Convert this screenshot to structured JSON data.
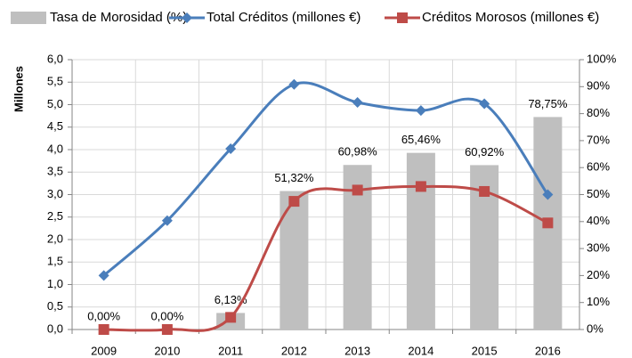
{
  "chart_data": {
    "type": "combo",
    "y_label": "Millones",
    "categories": [
      "2009",
      "2010",
      "2011",
      "2012",
      "2013",
      "2014",
      "2015",
      "2016"
    ],
    "series": [
      {
        "name": "Tasa de Morosidad (%)",
        "type": "bar",
        "axis": "y2",
        "color": "#bfbfbf",
        "values": [
          0,
          0,
          6.13,
          51.32,
          60.98,
          65.46,
          60.92,
          78.75
        ],
        "value_labels": [
          "0,00%",
          "0,00%",
          "6,13%",
          "51,32%",
          "60,98%",
          "65,46%",
          "60,92%",
          "78,75%"
        ]
      },
      {
        "name": "Total Créditos (millones €)",
        "type": "line",
        "marker": "diamond",
        "color": "#4a7ebb",
        "values": [
          1.2,
          2.42,
          4.02,
          5.45,
          5.05,
          4.87,
          5.02,
          3.0
        ]
      },
      {
        "name": "Créditos Morosos (millones €)",
        "type": "line",
        "marker": "square",
        "color": "#be4b48",
        "values": [
          0,
          0,
          0.27,
          2.85,
          3.1,
          3.18,
          3.07,
          2.37
        ]
      }
    ],
    "ylim": [
      0,
      6
    ],
    "yticks": [
      {
        "value": 0,
        "label": "0,0"
      },
      {
        "value": 0.5,
        "label": "0,5"
      },
      {
        "value": 1,
        "label": "1,0"
      },
      {
        "value": 1.5,
        "label": "1,5"
      },
      {
        "value": 2,
        "label": "2,0"
      },
      {
        "value": 2.5,
        "label": "2,5"
      },
      {
        "value": 3,
        "label": "3,0"
      },
      {
        "value": 3.5,
        "label": "3,5"
      },
      {
        "value": 4,
        "label": "4,0"
      },
      {
        "value": 4.5,
        "label": "4,5"
      },
      {
        "value": 5,
        "label": "5,0"
      },
      {
        "value": 5.5,
        "label": "5,5"
      },
      {
        "value": 6,
        "label": "6,0"
      }
    ],
    "y2lim": [
      0,
      100
    ],
    "y2ticks": [
      {
        "value": 0,
        "label": "0%"
      },
      {
        "value": 10,
        "label": "10%"
      },
      {
        "value": 20,
        "label": "20%"
      },
      {
        "value": 30,
        "label": "30%"
      },
      {
        "value": 40,
        "label": "40%"
      },
      {
        "value": 50,
        "label": "50%"
      },
      {
        "value": 60,
        "label": "60%"
      },
      {
        "value": 70,
        "label": "70%"
      },
      {
        "value": 80,
        "label": "80%"
      },
      {
        "value": 90,
        "label": "90%"
      },
      {
        "value": 100,
        "label": "100%"
      }
    ],
    "grid": true,
    "legend": "top"
  }
}
